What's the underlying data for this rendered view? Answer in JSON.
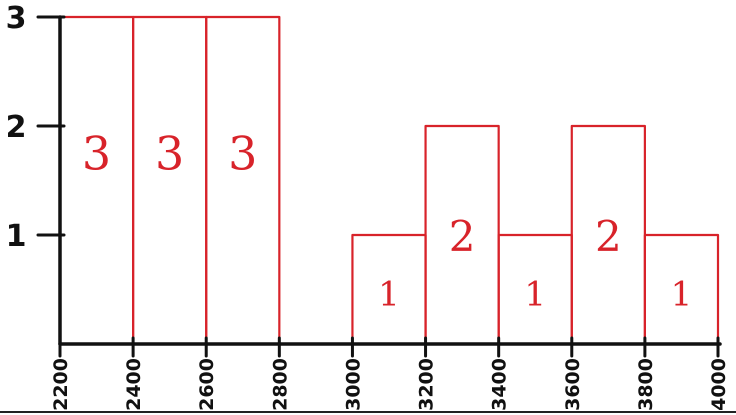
{
  "chart_data": {
    "type": "bar",
    "title": "",
    "xlabel": "",
    "ylabel": "",
    "bin_edges": [
      2200,
      2400,
      2600,
      2800,
      3000,
      3200,
      3400,
      3600,
      3800,
      4000
    ],
    "x_tick_labels": [
      "2200",
      "2400",
      "2600",
      "2800",
      "3000",
      "3200",
      "3400",
      "3600",
      "3800",
      "4000"
    ],
    "bars": [
      {
        "x0": 2200,
        "x1": 2400,
        "value": 3,
        "label": "3"
      },
      {
        "x0": 2400,
        "x1": 2600,
        "value": 3,
        "label": "3"
      },
      {
        "x0": 2600,
        "x1": 2800,
        "value": 3,
        "label": "3"
      },
      {
        "x0": 3000,
        "x1": 3200,
        "value": 1,
        "label": "1"
      },
      {
        "x0": 3200,
        "x1": 3400,
        "value": 2,
        "label": "2"
      },
      {
        "x0": 3400,
        "x1": 3600,
        "value": 1,
        "label": "1"
      },
      {
        "x0": 3600,
        "x1": 3800,
        "value": 2,
        "label": "2"
      },
      {
        "x0": 3800,
        "x1": 4000,
        "value": 1,
        "label": "1"
      }
    ],
    "y_ticks": [
      1,
      2,
      3
    ],
    "y_tick_labels": [
      "1",
      "2",
      "3"
    ],
    "ylim": [
      0,
      3
    ],
    "xlim": [
      2200,
      4000
    ],
    "grid": false,
    "colors": {
      "bar_stroke": "#d8232a",
      "bar_label": "#d8232a",
      "axis": "#111111"
    }
  }
}
